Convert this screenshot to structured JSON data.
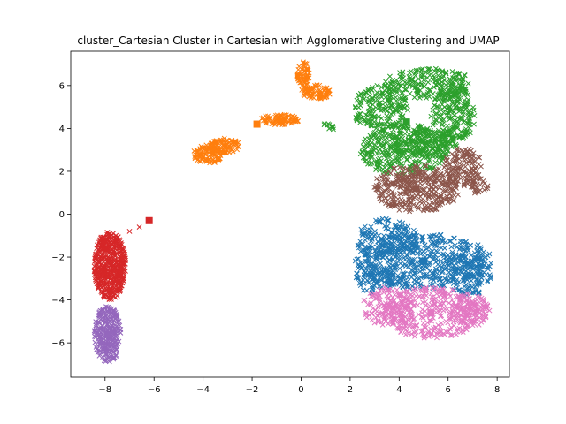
{
  "chart_data": {
    "type": "scatter",
    "title": "cluster_Cartesian Cluster in Cartesian with Agglomerative Clustering and UMAP",
    "xlabel": "",
    "ylabel": "",
    "xlim": [
      -9.4,
      8.5
    ],
    "ylim": [
      -7.6,
      7.6
    ],
    "x_ticks": [
      -8,
      -6,
      -4,
      -2,
      0,
      2,
      4,
      6,
      8
    ],
    "y_ticks": [
      -6,
      -4,
      -2,
      0,
      2,
      4,
      6
    ],
    "x_tick_labels": [
      "−8",
      "−6",
      "−4",
      "−2",
      "0",
      "2",
      "4",
      "6",
      "8"
    ],
    "y_tick_labels": [
      "−6",
      "−4",
      "−2",
      "0",
      "2",
      "4",
      "6"
    ],
    "grid": false,
    "marker": "x",
    "series": [
      {
        "color": "#1f77b4",
        "regions": [
          {
            "cx": 5.0,
            "cy": -2.2,
            "rx": 2.8,
            "ry": 1.3
          },
          {
            "cx": 3.5,
            "cy": -1.2,
            "rx": 1.3,
            "ry": 1.0
          },
          {
            "cx": 6.8,
            "cy": -2.8,
            "rx": 1.0,
            "ry": 1.0
          },
          {
            "cx": 3.0,
            "cy": -3.0,
            "rx": 0.8,
            "ry": 0.7
          }
        ],
        "count": 900,
        "centroid": [
          5.0,
          -2.2
        ]
      },
      {
        "color": "#ff7f0e",
        "regions": [
          {
            "cx": -3.8,
            "cy": 2.8,
            "rx": 0.6,
            "ry": 0.45
          },
          {
            "cx": -3.1,
            "cy": 3.2,
            "rx": 0.6,
            "ry": 0.35
          },
          {
            "cx": -0.9,
            "cy": 4.4,
            "rx": 0.8,
            "ry": 0.25
          },
          {
            "cx": 0.1,
            "cy": 6.5,
            "rx": 0.25,
            "ry": 0.6
          },
          {
            "cx": 0.6,
            "cy": 5.7,
            "rx": 0.6,
            "ry": 0.35
          }
        ],
        "count": 420,
        "centroid": [
          -1.8,
          4.2
        ]
      },
      {
        "color": "#2ca02c",
        "regions": [
          {
            "cx": 4.2,
            "cy": 3.0,
            "rx": 1.8,
            "ry": 1.2
          },
          {
            "cx": 5.2,
            "cy": 6.1,
            "rx": 1.8,
            "ry": 0.7
          },
          {
            "cx": 3.2,
            "cy": 5.0,
            "rx": 1.2,
            "ry": 1.0
          },
          {
            "cx": 6.2,
            "cy": 4.6,
            "rx": 0.9,
            "ry": 1.4
          },
          {
            "cx": 5.0,
            "cy": 3.3,
            "rx": 1.4,
            "ry": 0.7
          },
          {
            "cx": 1.2,
            "cy": 4.1,
            "rx": 0.4,
            "ry": 0.15
          }
        ],
        "count": 1100,
        "centroid": [
          4.3,
          4.3
        ]
      },
      {
        "color": "#d62728",
        "regions": [
          {
            "cx": -7.8,
            "cy": -2.4,
            "rx": 0.65,
            "ry": 1.6
          }
        ],
        "count": 500,
        "extra_points": [
          [
            -6.2,
            -0.3
          ],
          [
            -6.6,
            -0.6
          ],
          [
            -7.0,
            -0.8
          ]
        ],
        "centroid": [
          -6.2,
          -0.3
        ]
      },
      {
        "color": "#9467bd",
        "regions": [
          {
            "cx": -7.9,
            "cy": -5.6,
            "rx": 0.55,
            "ry": 1.3
          }
        ],
        "count": 260,
        "centroid": [
          -7.9,
          -5.6
        ]
      },
      {
        "color": "#8c564b",
        "regions": [
          {
            "cx": 4.7,
            "cy": 1.2,
            "rx": 1.8,
            "ry": 1.1
          },
          {
            "cx": 6.6,
            "cy": 2.2,
            "rx": 0.8,
            "ry": 0.9
          },
          {
            "cx": 7.3,
            "cy": 1.3,
            "rx": 0.4,
            "ry": 0.4
          }
        ],
        "count": 520,
        "centroid": [
          4.7,
          1.2
        ]
      },
      {
        "color": "#e377c2",
        "regions": [
          {
            "cx": 5.3,
            "cy": -4.6,
            "rx": 2.0,
            "ry": 1.2
          },
          {
            "cx": 3.5,
            "cy": -4.3,
            "rx": 1.0,
            "ry": 0.9
          },
          {
            "cx": 6.8,
            "cy": -4.5,
            "rx": 0.9,
            "ry": 0.8
          }
        ],
        "count": 560,
        "centroid": [
          5.3,
          -4.6
        ]
      }
    ]
  }
}
